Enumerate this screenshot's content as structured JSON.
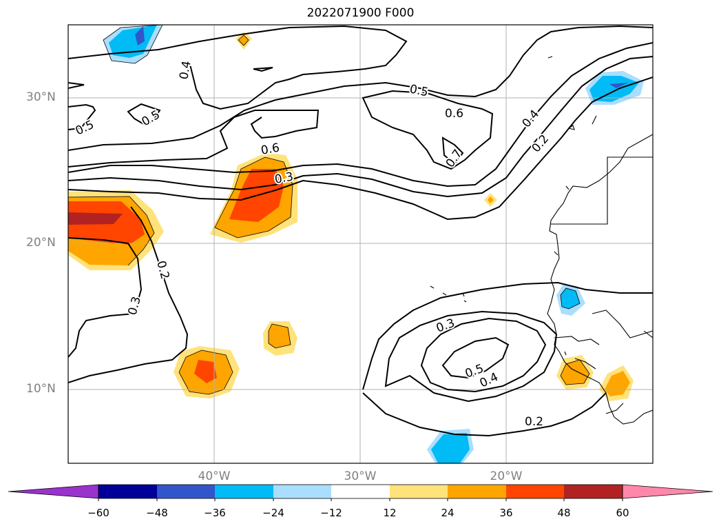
{
  "title": "2022071900 F000",
  "lat_labels": [
    "30°N",
    "20°N",
    "10°N"
  ],
  "lon_labels": [
    "40°W",
    "30°W",
    "20°W"
  ],
  "contour_labels": [
    "0.4",
    "0.5",
    "0.5",
    "0.5",
    "0.6",
    "0.6",
    "0.7",
    "0.3",
    "0.4",
    "0.2",
    "0.2",
    "0.3",
    "0.3",
    "0.5",
    "0.4",
    "0.2"
  ],
  "colorbar": {
    "ticks": [
      "−60",
      "−48",
      "−36",
      "−24",
      "−12",
      "12",
      "24",
      "36",
      "48",
      "60"
    ],
    "colors": [
      "#9933cc",
      "#000099",
      "#3355cc",
      "#00bbf5",
      "#aadeff",
      "#ffffff",
      "#ffe27a",
      "#ffa500",
      "#ff4500",
      "#b22222",
      "#ff88aa"
    ]
  },
  "shading_colors": {
    "neg_light": "#aadeff",
    "neg_mid": "#00bbf5",
    "neg_dark": "#3355cc",
    "pos_light": "#ffe27a",
    "pos_mid": "#ffa500",
    "pos_high": "#ff4500",
    "pos_max": "#b22222"
  }
}
